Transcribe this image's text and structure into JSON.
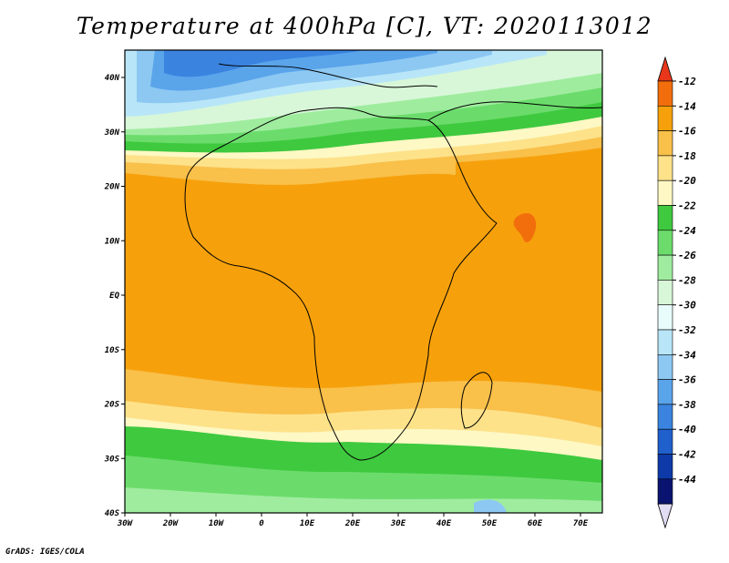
{
  "title": "Temperature at 400hPa [C], VT: 2020113012",
  "credit": "GrADS: IGES/COLA",
  "map": {
    "lat_ticks": [
      "40N",
      "30N",
      "20N",
      "10N",
      "EQ",
      "10S",
      "20S",
      "30S",
      "40S"
    ],
    "lon_ticks": [
      "30W",
      "20W",
      "10W",
      "0",
      "10E",
      "20E",
      "30E",
      "40E",
      "50E",
      "60E",
      "70E"
    ]
  },
  "colorbar": {
    "labels": [
      "-12",
      "-14",
      "-16",
      "-18",
      "-20",
      "-22",
      "-24",
      "-26",
      "-28",
      "-30",
      "-32",
      "-34",
      "-36",
      "-38",
      "-40",
      "-42",
      "-44"
    ],
    "colors": [
      "#e8371a",
      "#f26e0c",
      "#f6a10c",
      "#f9c04a",
      "#fde28a",
      "#fdf8c4",
      "#3fc93f",
      "#6bdc6b",
      "#9fec9f",
      "#d8f7d8",
      "#e8fcfc",
      "#b8e6f8",
      "#8cc8f2",
      "#5aa4ea",
      "#3a84e0",
      "#2060cc",
      "#0d3aa8",
      "#0a1470",
      "#e2dcf4"
    ]
  },
  "levels_note": "",
  "fields": {
    "max_region_1": "-14",
    "max_region_2": "-14"
  }
}
